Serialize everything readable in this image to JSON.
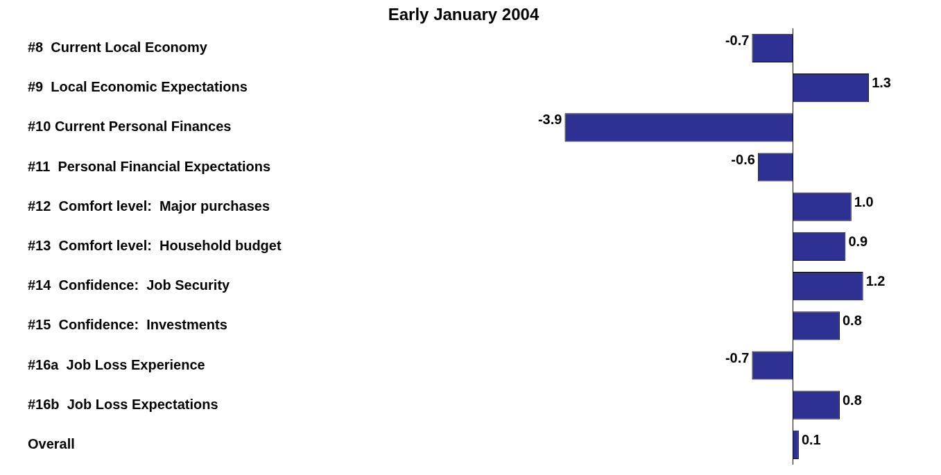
{
  "chart_data": {
    "type": "bar",
    "orientation": "horizontal",
    "title": "Early January 2004",
    "categories": [
      "#8  Current Local Economy",
      "#9  Local Economic Expectations",
      "#10 Current Personal Finances",
      "#11  Personal Financial Expectations",
      "#12  Comfort level:  Major purchases",
      "#13  Comfort level:  Household budget",
      "#14  Confidence:  Job Security",
      "#15  Confidence:  Investments",
      "#16a  Job Loss Experience",
      "#16b  Job Loss Expectations",
      "Overall"
    ],
    "values": [
      -0.7,
      1.3,
      -3.9,
      -0.6,
      1.0,
      0.9,
      1.2,
      0.8,
      -0.7,
      0.8,
      0.1
    ],
    "value_labels": [
      "-0.7",
      "1.3",
      "-3.9",
      "-0.6",
      "1.0",
      "0.9",
      "1.2",
      "0.8",
      "-0.7",
      "0.8",
      "0.1"
    ],
    "color": "#2e3192",
    "legend": false,
    "grid": false
  }
}
